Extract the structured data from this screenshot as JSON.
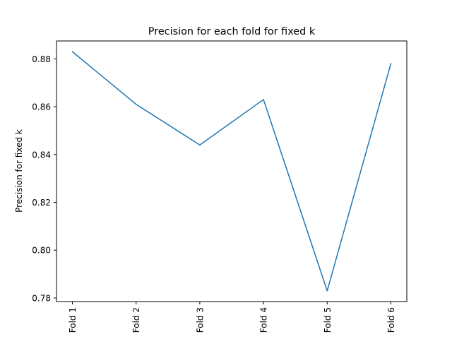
{
  "chart_data": {
    "type": "line",
    "title": "Precision for each fold for fixed k",
    "xlabel": "",
    "ylabel": "Precision for fixed k",
    "categories": [
      "Fold 1",
      "Fold 2",
      "Fold 3",
      "Fold 4",
      "Fold 5",
      "Fold 6"
    ],
    "series": [
      {
        "values": [
          0.883,
          0.861,
          0.844,
          0.863,
          0.783,
          0.878
        ],
        "color": "#1f77b4"
      }
    ],
    "ylim": [
      0.7785,
      0.8875
    ],
    "yticks": [
      0.78,
      0.8,
      0.82,
      0.84,
      0.86,
      0.88
    ],
    "ytick_labels": [
      "0.78",
      "0.80",
      "0.82",
      "0.84",
      "0.86",
      "0.88"
    ],
    "grid": false,
    "legend": "none",
    "x_tick_rotation": "vertical"
  }
}
